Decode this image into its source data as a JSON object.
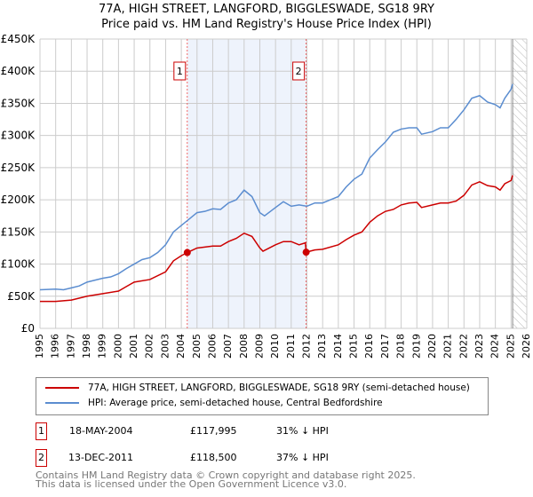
{
  "chart_data": {
    "type": "line",
    "title": "77A, HIGH STREET, LANGFORD, BIGGLESWADE, SG18 9RY",
    "subtitle": "Price paid vs. HM Land Registry's House Price Index (HPI)",
    "xlim": [
      1995,
      2026
    ],
    "ylim": [
      0,
      450000
    ],
    "x_ticks": [
      "1995",
      "1996",
      "1997",
      "1998",
      "1999",
      "2000",
      "2001",
      "2002",
      "2003",
      "2004",
      "2005",
      "2006",
      "2007",
      "2008",
      "2009",
      "2010",
      "2011",
      "2012",
      "2013",
      "2014",
      "2015",
      "2016",
      "2017",
      "2018",
      "2019",
      "2020",
      "2021",
      "2022",
      "2023",
      "2024",
      "2025",
      "2026"
    ],
    "y_ticks": [
      {
        "v": 0,
        "l": "£0"
      },
      {
        "v": 50000,
        "l": "£50K"
      },
      {
        "v": 100000,
        "l": "£100K"
      },
      {
        "v": 150000,
        "l": "£150K"
      },
      {
        "v": 200000,
        "l": "£200K"
      },
      {
        "v": 250000,
        "l": "£250K"
      },
      {
        "v": 300000,
        "l": "£300K"
      },
      {
        "v": 350000,
        "l": "£350K"
      },
      {
        "v": 400000,
        "l": "£400K"
      },
      {
        "v": 450000,
        "l": "£450K"
      }
    ],
    "grid": true,
    "shaded_range": [
      2004.38,
      2011.95
    ],
    "forecast_start": 2025.1,
    "series": [
      {
        "name": "77A, HIGH STREET, LANGFORD, BIGGLESWADE, SG18 9RY (semi-detached house)",
        "color": "#cc0000",
        "x": [
          1995,
          1996,
          1997,
          1998,
          1999,
          2000,
          2000.5,
          2001,
          2002,
          2003,
          2003.5,
          2004,
          2004.38,
          2005,
          2006,
          2006.5,
          2007,
          2007.5,
          2008,
          2008.5,
          2009,
          2009.2,
          2010,
          2010.5,
          2011,
          2011.5,
          2011.9,
          2011.95,
          2012.5,
          2013,
          2014,
          2014.5,
          2015,
          2015.5,
          2016,
          2016.5,
          2017,
          2017.5,
          2018,
          2018.5,
          2019,
          2019.3,
          2020,
          2020.5,
          2021,
          2021.5,
          2022,
          2022.5,
          2023,
          2023.5,
          2024,
          2024.3,
          2024.6,
          2025,
          2025.1
        ],
        "y": [
          42000,
          42000,
          44000,
          50000,
          54000,
          58000,
          65000,
          72000,
          76000,
          88000,
          105000,
          113000,
          117995,
          125000,
          128000,
          128000,
          135000,
          140000,
          148000,
          143000,
          125000,
          120000,
          130000,
          135000,
          135000,
          130000,
          133000,
          118500,
          122000,
          123000,
          130000,
          138000,
          145000,
          150000,
          165000,
          175000,
          182000,
          185000,
          192000,
          195000,
          196000,
          188000,
          192000,
          195000,
          195000,
          198000,
          207000,
          223000,
          228000,
          222000,
          220000,
          215000,
          225000,
          230000,
          238000
        ]
      },
      {
        "name": "HPI: Average price, semi-detached house, Central Bedfordshire",
        "color": "#5b8dd0",
        "x": [
          1995,
          1996,
          1996.5,
          1997,
          1997.5,
          1998,
          1999,
          1999.5,
          2000,
          2000.5,
          2001,
          2001.5,
          2002,
          2002.5,
          2003,
          2003.5,
          2004,
          2004.4,
          2005,
          2005.5,
          2006,
          2006.5,
          2007,
          2007.5,
          2008,
          2008.5,
          2009,
          2009.3,
          2010,
          2010.5,
          2011,
          2011.5,
          2012,
          2012.5,
          2013,
          2013.5,
          2014,
          2014.5,
          2015,
          2015.5,
          2016,
          2016.5,
          2017,
          2017.5,
          2018,
          2018.5,
          2019,
          2019.3,
          2020,
          2020.5,
          2021,
          2021.5,
          2022,
          2022.5,
          2023,
          2023.5,
          2024,
          2024.3,
          2024.6,
          2025,
          2025.1
        ],
        "y": [
          60000,
          61000,
          60000,
          63000,
          66000,
          72000,
          78000,
          80000,
          85000,
          93000,
          100000,
          107000,
          110000,
          118000,
          130000,
          150000,
          160000,
          168000,
          180000,
          182000,
          186000,
          185000,
          195000,
          200000,
          215000,
          205000,
          180000,
          175000,
          188000,
          197000,
          190000,
          192000,
          190000,
          195000,
          195000,
          200000,
          205000,
          220000,
          232000,
          240000,
          265000,
          278000,
          290000,
          305000,
          310000,
          312000,
          312000,
          302000,
          306000,
          312000,
          312000,
          325000,
          340000,
          358000,
          362000,
          352000,
          348000,
          343000,
          358000,
          372000,
          380000
        ]
      }
    ],
    "sales": [
      {
        "num": "1",
        "date": "18-MAY-2004",
        "x": 2004.38,
        "price": "£117,995",
        "value": 117995,
        "hpi": "31% ↓ HPI"
      },
      {
        "num": "2",
        "date": "13-DEC-2011",
        "x": 2011.95,
        "price": "£118,500",
        "value": 118500,
        "hpi": "37% ↓ HPI"
      }
    ]
  },
  "footer": {
    "line1": "Contains HM Land Registry data © Crown copyright and database right 2025.",
    "line2": "This data is licensed under the Open Government Licence v3.0."
  }
}
